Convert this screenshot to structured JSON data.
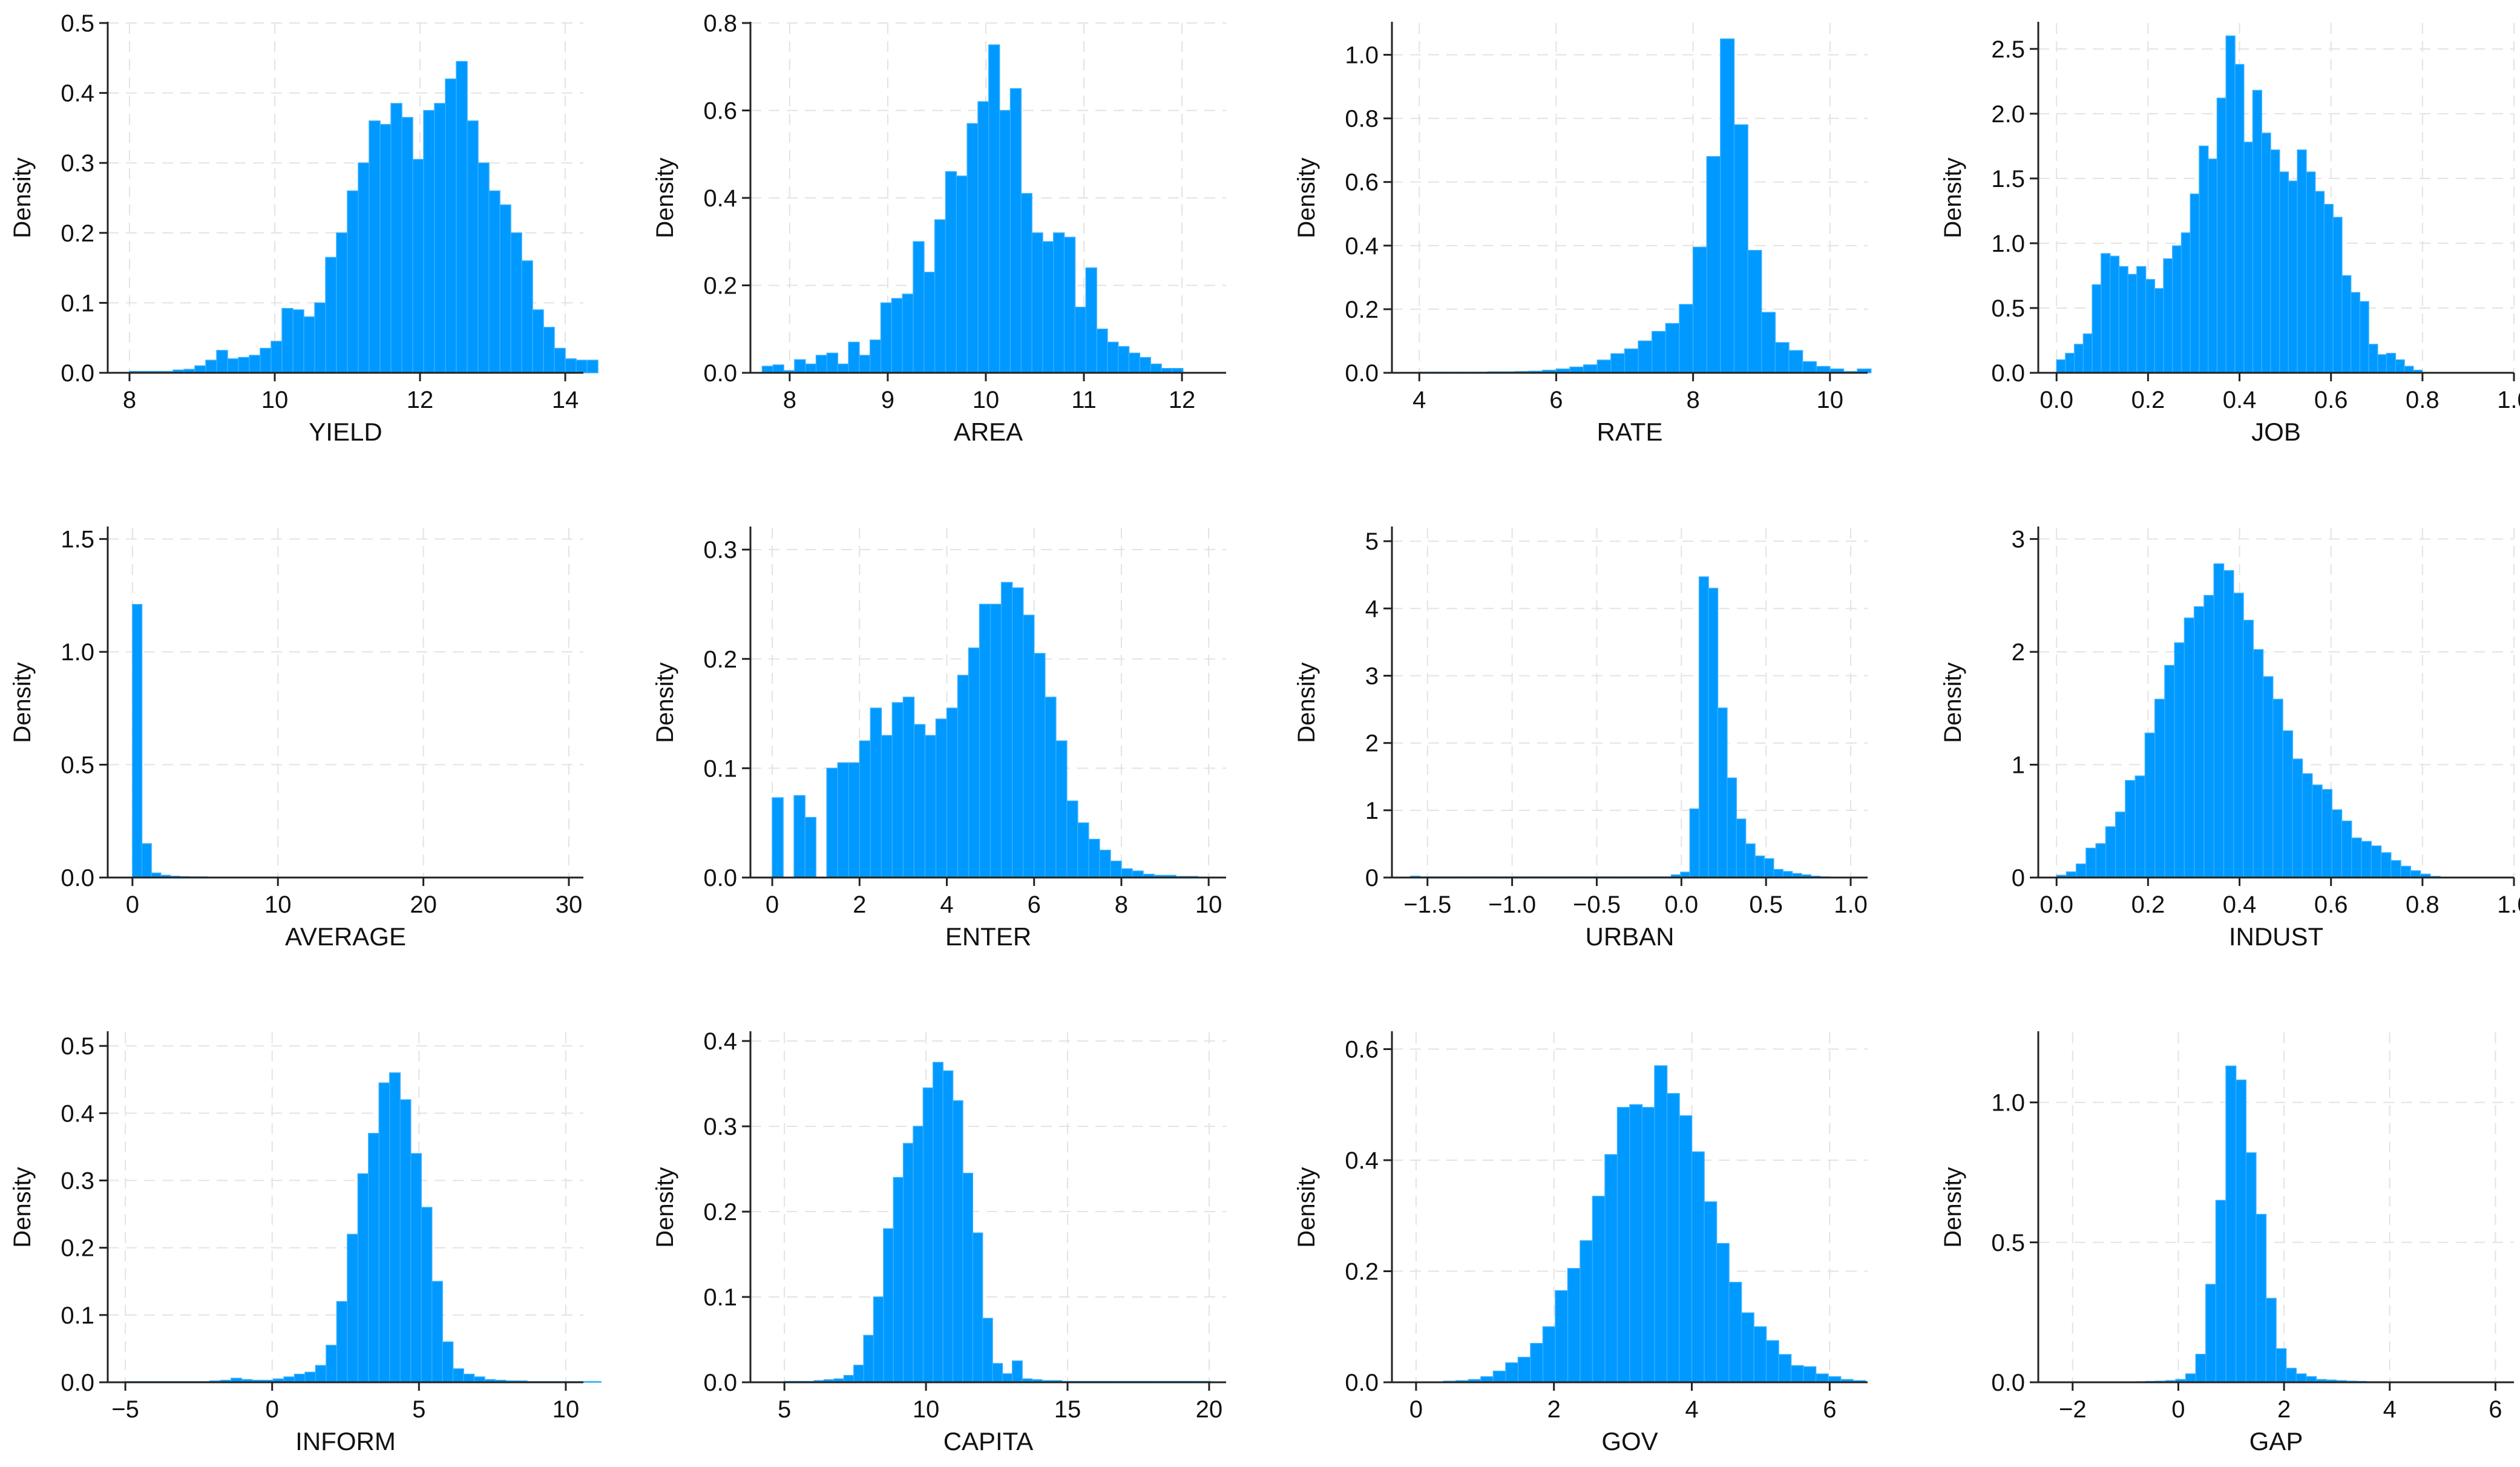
{
  "figure": {
    "ylabel": "Density",
    "color": "#0099FF"
  },
  "chart_data": [
    {
      "type": "bar",
      "title": "",
      "xlabel": "YIELD",
      "ylabel": "Density",
      "xlim": [
        7.7,
        14.25
      ],
      "ylim": [
        0,
        0.5
      ],
      "xticks": [
        8,
        10,
        12,
        14
      ],
      "xtick_labels": [
        "8",
        "10",
        "12",
        "14"
      ],
      "yticks": [
        0,
        0.1,
        0.2,
        0.3,
        0.4,
        0.5
      ],
      "ytick_labels": [
        "0.0",
        "0.1",
        "0.2",
        "0.3",
        "0.4",
        "0.5"
      ],
      "bins_start": 8.0,
      "bin_width": 0.15,
      "values": [
        0.002,
        0.002,
        0.002,
        0.002,
        0.004,
        0.005,
        0.01,
        0.018,
        0.032,
        0.02,
        0.022,
        0.025,
        0.035,
        0.045,
        0.092,
        0.09,
        0.08,
        0.1,
        0.165,
        0.2,
        0.26,
        0.3,
        0.36,
        0.355,
        0.385,
        0.365,
        0.305,
        0.375,
        0.385,
        0.42,
        0.445,
        0.36,
        0.3,
        0.26,
        0.24,
        0.2,
        0.16,
        0.09,
        0.065,
        0.035,
        0.02,
        0.018,
        0.018
      ]
    },
    {
      "type": "bar",
      "title": "",
      "xlabel": "AREA",
      "ylabel": "Density",
      "xlim": [
        7.6,
        12.45
      ],
      "ylim": [
        0,
        0.8
      ],
      "xticks": [
        8,
        9,
        10,
        11,
        12
      ],
      "xtick_labels": [
        "8",
        "9",
        "10",
        "11",
        "12"
      ],
      "yticks": [
        0,
        0.2,
        0.4,
        0.6,
        0.8
      ],
      "ytick_labels": [
        "0.0",
        "0.2",
        "0.4",
        "0.6",
        "0.8"
      ],
      "bins_start": 7.72,
      "bin_width": 0.11,
      "values": [
        0.015,
        0.018,
        0.005,
        0.03,
        0.02,
        0.04,
        0.045,
        0.02,
        0.07,
        0.04,
        0.075,
        0.16,
        0.17,
        0.18,
        0.3,
        0.23,
        0.35,
        0.46,
        0.45,
        0.57,
        0.62,
        0.75,
        0.6,
        0.65,
        0.41,
        0.32,
        0.3,
        0.32,
        0.31,
        0.15,
        0.24,
        0.1,
        0.07,
        0.06,
        0.045,
        0.035,
        0.02,
        0.01,
        0.01
      ]
    },
    {
      "type": "bar",
      "title": "",
      "xlabel": "RATE",
      "ylabel": "Density",
      "xlim": [
        3.6,
        10.55
      ],
      "ylim": [
        0,
        1.1
      ],
      "xticks": [
        4,
        6,
        8,
        10
      ],
      "xtick_labels": [
        "4",
        "6",
        "8",
        "10"
      ],
      "yticks": [
        0,
        0.2,
        0.4,
        0.6,
        0.8,
        1.0
      ],
      "ytick_labels": [
        "0.0",
        "0.2",
        "0.4",
        "0.6",
        "0.8",
        "1.0"
      ],
      "bins_start": 4.0,
      "bin_width": 0.2,
      "values": [
        0.002,
        0.002,
        0.002,
        0.002,
        0.002,
        0.003,
        0.003,
        0.004,
        0.005,
        0.008,
        0.012,
        0.018,
        0.025,
        0.04,
        0.06,
        0.075,
        0.1,
        0.13,
        0.155,
        0.215,
        0.395,
        0.68,
        1.05,
        0.78,
        0.385,
        0.19,
        0.095,
        0.07,
        0.035,
        0.02,
        0.012,
        0.004,
        0.012
      ]
    },
    {
      "type": "bar",
      "title": "",
      "xlabel": "JOB",
      "ylabel": "Density",
      "xlim": [
        -0.04,
        1.0
      ],
      "ylim": [
        0,
        2.7
      ],
      "xticks": [
        0,
        0.2,
        0.4,
        0.6,
        0.8,
        1.0
      ],
      "xtick_labels": [
        "0.0",
        "0.2",
        "0.4",
        "0.6",
        "0.8",
        "1.0"
      ],
      "yticks": [
        0,
        0.5,
        1.0,
        1.5,
        2.0,
        2.5
      ],
      "ytick_labels": [
        "0.0",
        "0.5",
        "1.0",
        "1.5",
        "2.0",
        "2.5"
      ],
      "bins_start": 0.0,
      "bin_width": 0.0195,
      "values": [
        0.1,
        0.15,
        0.22,
        0.3,
        0.68,
        0.92,
        0.9,
        0.82,
        0.76,
        0.82,
        0.72,
        0.65,
        0.88,
        0.98,
        1.08,
        1.38,
        1.75,
        1.65,
        2.12,
        2.6,
        2.38,
        1.78,
        2.18,
        1.85,
        1.72,
        1.55,
        1.48,
        1.72,
        1.55,
        1.4,
        1.3,
        1.2,
        0.75,
        0.62,
        0.55,
        0.22,
        0.14,
        0.15,
        0.1,
        0.05,
        0.02
      ]
    },
    {
      "type": "bar",
      "title": "",
      "xlabel": "AVERAGE",
      "ylabel": "Density",
      "xlim": [
        -1.7,
        31.0
      ],
      "ylim": [
        0,
        1.55
      ],
      "xticks": [
        0,
        10,
        20,
        30
      ],
      "xtick_labels": [
        "0",
        "10",
        "20",
        "30"
      ],
      "yticks": [
        0,
        0.5,
        1.0,
        1.5
      ],
      "ytick_labels": [
        "0.0",
        "0.5",
        "1.0",
        "1.5"
      ],
      "bins_start": 0.0,
      "bin_width": 0.65,
      "values": [
        1.21,
        0.15,
        0.02,
        0.01,
        0.006,
        0.004,
        0.003,
        0.003,
        0.002,
        0.002,
        0.002,
        0.002,
        0.002,
        0.002,
        0.002,
        0.002,
        0.002,
        0.002,
        0.002,
        0.002,
        0.002,
        0.002,
        0.002,
        0.002,
        0.002,
        0.002,
        0.002,
        0.002,
        0.002,
        0.002,
        0.002,
        0.002,
        0.002,
        0.002,
        0.002,
        0.002,
        0.002,
        0.002,
        0.002,
        0.002,
        0.002,
        0.002,
        0.002,
        0.002,
        0.002
      ]
    },
    {
      "type": "bar",
      "title": "",
      "xlabel": "ENTER",
      "ylabel": "Density",
      "xlim": [
        -0.5,
        10.4
      ],
      "ylim": [
        0,
        0.32
      ],
      "xticks": [
        0,
        2,
        4,
        6,
        8,
        10
      ],
      "xtick_labels": [
        "0",
        "2",
        "4",
        "6",
        "8",
        "10"
      ],
      "yticks": [
        0,
        0.1,
        0.2,
        0.3
      ],
      "ytick_labels": [
        "0.0",
        "0.1",
        "0.2",
        "0.3"
      ],
      "bins_start": 0.0,
      "bin_width": 0.25,
      "values": [
        0.073,
        0,
        0.075,
        0.055,
        0,
        0.1,
        0.105,
        0.105,
        0.125,
        0.155,
        0.13,
        0.16,
        0.165,
        0.14,
        0.13,
        0.145,
        0.155,
        0.185,
        0.21,
        0.25,
        0.25,
        0.27,
        0.265,
        0.24,
        0.205,
        0.165,
        0.125,
        0.07,
        0.05,
        0.035,
        0.025,
        0.015,
        0.008,
        0.006,
        0.003,
        0.002,
        0.002,
        0.001,
        0.001
      ]
    },
    {
      "type": "bar",
      "title": "",
      "xlabel": "URBAN",
      "ylabel": "Density",
      "xlim": [
        -1.71,
        1.1
      ],
      "ylim": [
        0,
        5.2
      ],
      "xticks": [
        -1.5,
        -1.0,
        -0.5,
        0,
        0.5,
        1.0
      ],
      "xtick_labels": [
        "−1.5",
        "−1.0",
        "−0.5",
        "0.0",
        "0.5",
        "1.0"
      ],
      "yticks": [
        0,
        1,
        2,
        3,
        4,
        5
      ],
      "ytick_labels": [
        "0",
        "1",
        "2",
        "3",
        "4",
        "5"
      ],
      "bins_start": -1.6,
      "bin_width": 0.055,
      "values": [
        0.02,
        0.01,
        0.01,
        0.01,
        0.01,
        0.01,
        0.01,
        0.01,
        0.01,
        0.01,
        0.01,
        0.01,
        0.01,
        0.01,
        0.01,
        0.01,
        0.01,
        0.01,
        0.01,
        0.01,
        0.01,
        0.01,
        0.01,
        0.01,
        0.01,
        0.01,
        0.01,
        0.01,
        0.04,
        0.08,
        1.02,
        4.47,
        4.3,
        2.52,
        1.48,
        0.87,
        0.5,
        0.32,
        0.28,
        0.12,
        0.09,
        0.06,
        0.04,
        0.02,
        0.01
      ]
    },
    {
      "type": "bar",
      "title": "",
      "xlabel": "INDUST",
      "ylabel": "Density",
      "xlim": [
        -0.04,
        1.0
      ],
      "ylim": [
        0,
        3.1
      ],
      "xticks": [
        0,
        0.2,
        0.4,
        0.6,
        0.8,
        1.0
      ],
      "xtick_labels": [
        "0.0",
        "0.2",
        "0.4",
        "0.6",
        "0.8",
        "1.0"
      ],
      "yticks": [
        0,
        1,
        2,
        3
      ],
      "ytick_labels": [
        "0",
        "1",
        "2",
        "3"
      ],
      "bins_start": 0.0,
      "bin_width": 0.0215,
      "values": [
        0.02,
        0.05,
        0.12,
        0.26,
        0.3,
        0.45,
        0.58,
        0.86,
        0.9,
        1.28,
        1.58,
        1.88,
        2.08,
        2.3,
        2.4,
        2.5,
        2.78,
        2.72,
        2.52,
        2.28,
        2.02,
        1.78,
        1.58,
        1.3,
        1.05,
        0.92,
        0.82,
        0.78,
        0.6,
        0.5,
        0.35,
        0.32,
        0.28,
        0.22,
        0.15,
        0.1,
        0.06,
        0.03,
        0.01
      ]
    },
    {
      "type": "bar",
      "title": "",
      "xlabel": "INFORM",
      "ylabel": "Density",
      "xlim": [
        -5.6,
        10.6
      ],
      "ylim": [
        0,
        0.52
      ],
      "xticks": [
        -5,
        0,
        5,
        10
      ],
      "xtick_labels": [
        "−5",
        "0",
        "5",
        "10"
      ],
      "yticks": [
        0,
        0.1,
        0.2,
        0.3,
        0.4,
        0.5
      ],
      "ytick_labels": [
        "0.0",
        "0.1",
        "0.2",
        "0.3",
        "0.4",
        "0.5"
      ],
      "bins_start": -5.0,
      "bin_width": 0.36,
      "values": [
        0.001,
        0.001,
        0.001,
        0.001,
        0.001,
        0.001,
        0.001,
        0.001,
        0.002,
        0.003,
        0.006,
        0.004,
        0.003,
        0.003,
        0.005,
        0.008,
        0.012,
        0.015,
        0.025,
        0.055,
        0.12,
        0.22,
        0.31,
        0.37,
        0.445,
        0.46,
        0.42,
        0.34,
        0.26,
        0.15,
        0.06,
        0.02,
        0.012,
        0.008,
        0.004,
        0.003,
        0.002,
        0.002,
        0.001,
        0.001,
        0.001,
        0.001,
        0.001,
        0.001,
        0.001
      ]
    },
    {
      "type": "bar",
      "title": "",
      "xlabel": "CAPITA",
      "ylabel": "Density",
      "xlim": [
        3.8,
        20.6
      ],
      "ylim": [
        0,
        0.41
      ],
      "xticks": [
        5,
        10,
        15,
        20
      ],
      "xtick_labels": [
        "5",
        "10",
        "15",
        "20"
      ],
      "yticks": [
        0,
        0.1,
        0.2,
        0.3,
        0.4
      ],
      "ytick_labels": [
        "0.0",
        "0.1",
        "0.2",
        "0.3",
        "0.4"
      ],
      "bins_start": 5.0,
      "bin_width": 0.35,
      "values": [
        0.001,
        0.001,
        0.001,
        0.002,
        0.003,
        0.004,
        0.008,
        0.02,
        0.055,
        0.1,
        0.18,
        0.24,
        0.28,
        0.3,
        0.345,
        0.375,
        0.365,
        0.33,
        0.245,
        0.175,
        0.075,
        0.022,
        0.01,
        0.025,
        0.004,
        0.003,
        0.002,
        0.002,
        0.001,
        0.001,
        0.001,
        0.001,
        0.001,
        0.001,
        0.001,
        0.001,
        0.001,
        0.001,
        0.001,
        0.001,
        0.001,
        0.001,
        0.001
      ]
    },
    {
      "type": "bar",
      "title": "",
      "xlabel": "GOV",
      "ylabel": "Density",
      "xlim": [
        -0.35,
        6.55
      ],
      "ylim": [
        0,
        0.63
      ],
      "xticks": [
        0,
        2,
        4,
        6
      ],
      "xtick_labels": [
        "0",
        "2",
        "4",
        "6"
      ],
      "yticks": [
        0,
        0.2,
        0.4,
        0.6
      ],
      "ytick_labels": [
        "0.0",
        "0.2",
        "0.4",
        "0.6"
      ],
      "bins_start": 0.4,
      "bin_width": 0.18,
      "values": [
        0.002,
        0.003,
        0.005,
        0.01,
        0.02,
        0.035,
        0.045,
        0.07,
        0.1,
        0.165,
        0.205,
        0.255,
        0.335,
        0.41,
        0.495,
        0.5,
        0.495,
        0.57,
        0.52,
        0.48,
        0.415,
        0.325,
        0.25,
        0.18,
        0.125,
        0.1,
        0.075,
        0.05,
        0.03,
        0.028,
        0.015,
        0.01,
        0.005,
        0.003
      ]
    },
    {
      "type": "bar",
      "title": "",
      "xlabel": "GAP",
      "ylabel": "Density",
      "xlim": [
        -2.65,
        6.35
      ],
      "ylim": [
        0,
        1.25
      ],
      "xticks": [
        -2,
        0,
        2,
        4,
        6
      ],
      "xtick_labels": [
        "−2",
        "0",
        "2",
        "4",
        "6"
      ],
      "yticks": [
        0,
        0.5,
        1.0
      ],
      "ytick_labels": [
        "0.0",
        "0.5",
        "1.0"
      ],
      "bins_start": -1.0,
      "bin_width": 0.19,
      "values": [
        0.001,
        0.002,
        0.003,
        0.004,
        0.006,
        0.01,
        0.03,
        0.1,
        0.35,
        0.65,
        1.13,
        1.08,
        0.82,
        0.6,
        0.3,
        0.12,
        0.05,
        0.03,
        0.02,
        0.01,
        0.008,
        0.006,
        0.004,
        0.003,
        0.002,
        0.002,
        0.001,
        0.001,
        0.001,
        0.001,
        0.001,
        0.001,
        0.001,
        0.001,
        0.001,
        0.001,
        0.001,
        0.001
      ]
    }
  ]
}
